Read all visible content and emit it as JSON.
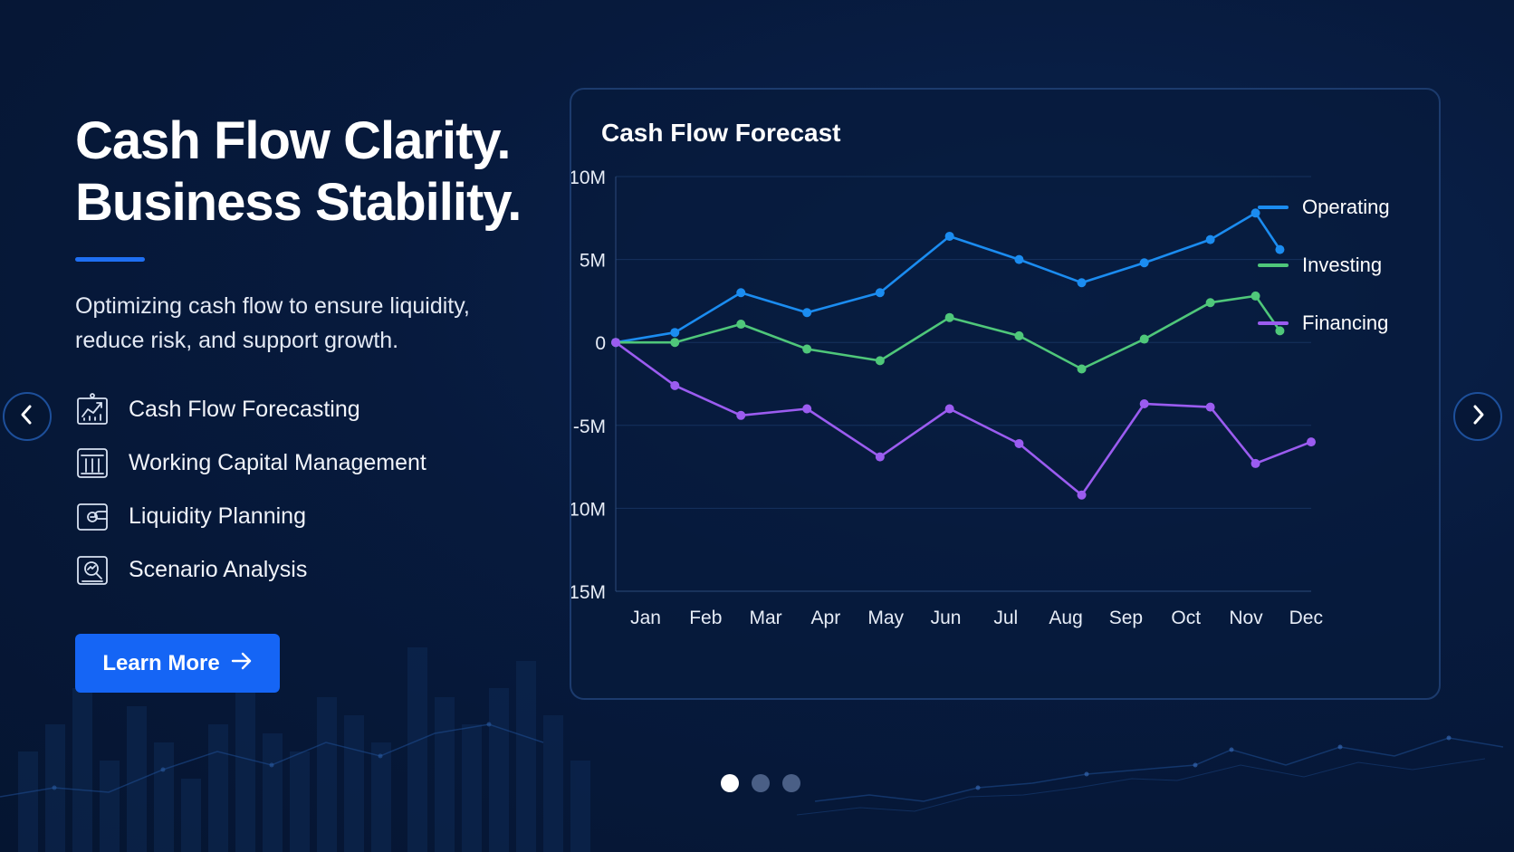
{
  "hero": {
    "headline_line1": "Cash Flow Clarity.",
    "headline_line2": "Business Stability.",
    "subtitle": "Optimizing cash flow to ensure liquidity, reduce risk, and support growth.",
    "features": [
      {
        "label": "Cash Flow Forecasting",
        "icon": "chart-growth-icon"
      },
      {
        "label": "Working Capital Management",
        "icon": "bank-icon"
      },
      {
        "label": "Liquidity Planning",
        "icon": "wallet-icon"
      },
      {
        "label": "Scenario Analysis",
        "icon": "magnifier-chart-icon"
      }
    ],
    "cta_label": "Learn More",
    "cta_icon": "arrow-right-icon"
  },
  "carousel": {
    "prev_icon": "chevron-left-icon",
    "next_icon": "chevron-right-icon",
    "slides": 3,
    "active_index": 0
  },
  "colors": {
    "accent": "#1565f5",
    "operating": "#1b8cf0",
    "investing": "#4fc77a",
    "financing": "#9b5cf0"
  },
  "chart_data": {
    "type": "line",
    "title": "Cash Flow Forecast",
    "categories": [
      "Jan",
      "Feb",
      "Mar",
      "Apr",
      "May",
      "Jun",
      "Jul",
      "Aug",
      "Sep",
      "Oct",
      "Nov",
      "Dec"
    ],
    "x": [
      0,
      0.85,
      1.8,
      2.75,
      3.8,
      4.8,
      5.8,
      6.7,
      7.6,
      8.55,
      9.2,
      9.55,
      10.0
    ],
    "y_ticks": [
      10,
      5,
      0,
      -5,
      -10,
      -15
    ],
    "y_tick_labels": [
      "10M",
      "5M",
      "0",
      "-5M",
      "-10M",
      "-15M"
    ],
    "ylim": [
      -15,
      10
    ],
    "ylabel": "",
    "xlabel": "",
    "grid": true,
    "legend_position": "top-right",
    "series": [
      {
        "name": "Operating",
        "color": "#1b8cf0",
        "points": [
          [
            0,
            0
          ],
          [
            0.85,
            0.6
          ],
          [
            1.8,
            3.0
          ],
          [
            2.75,
            1.8
          ],
          [
            3.8,
            3.0
          ],
          [
            4.8,
            6.4
          ],
          [
            5.8,
            5.0
          ],
          [
            6.7,
            3.6
          ],
          [
            7.6,
            4.8
          ],
          [
            8.55,
            6.2
          ],
          [
            9.2,
            7.8
          ],
          [
            9.55,
            5.6
          ]
        ]
      },
      {
        "name": "Investing",
        "color": "#4fc77a",
        "points": [
          [
            0,
            0
          ],
          [
            0.85,
            0.0
          ],
          [
            1.8,
            1.1
          ],
          [
            2.75,
            -0.4
          ],
          [
            3.8,
            -1.1
          ],
          [
            4.8,
            1.5
          ],
          [
            5.8,
            0.4
          ],
          [
            6.7,
            -1.6
          ],
          [
            7.6,
            0.2
          ],
          [
            8.55,
            2.4
          ],
          [
            9.2,
            2.8
          ],
          [
            9.55,
            0.7
          ]
        ]
      },
      {
        "name": "Financing",
        "color": "#9b5cf0",
        "points": [
          [
            0,
            0
          ],
          [
            0.85,
            -2.6
          ],
          [
            1.8,
            -4.4
          ],
          [
            2.75,
            -4.0
          ],
          [
            3.8,
            -6.9
          ],
          [
            4.8,
            -4.0
          ],
          [
            5.8,
            -6.1
          ],
          [
            6.7,
            -9.2
          ],
          [
            7.6,
            -3.7
          ],
          [
            8.55,
            -3.9
          ],
          [
            9.2,
            -7.3
          ],
          [
            10.0,
            -6.0
          ]
        ]
      }
    ]
  }
}
